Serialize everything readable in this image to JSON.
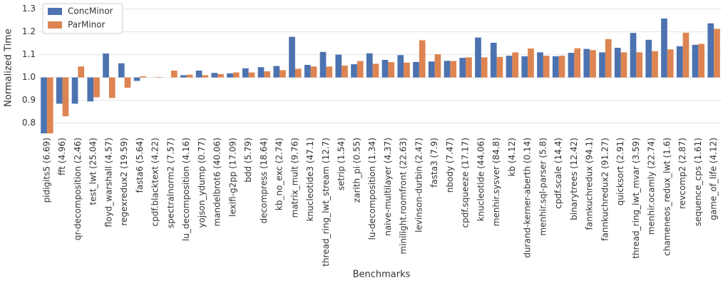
{
  "chart_data": {
    "type": "bar",
    "x_label": "Benchmarks",
    "y_label": "Normalized Time",
    "categories": [
      "pidigits5 (6.69)",
      "fft (4.96)",
      "qr-decomposition (2.46)",
      "test_lwt (25.04)",
      "floyd_warshall (4.57)",
      "regexredux2 (19.59)",
      "fasta6 (5.64)",
      "cpdf.blacktext (4.22)",
      "spectralnorm2 (7.57)",
      "lu_decomposition (4.16)",
      "yojson_ydump (0.77)",
      "mandelbrot6 (40.06)",
      "lexifi-g2pp (17.09)",
      "bdd (5.79)",
      "decompress (18.64)",
      "kb_no_exc (2.74)",
      "matrix_mult (9.76)",
      "knucleotide3 (47.1)",
      "thread_ring_lwt_stream (12.7)",
      "setrip (1.54)",
      "zarith_pi (0.55)",
      "lu-decomposition (1.34)",
      "naive-multilayer (4.37)",
      "minilight.roomfront (22.63)",
      "levinson-durbin (2.47)",
      "fasta3 (7.9)",
      "nbody (7.47)",
      "cpdf.squeeze (17.17)",
      "knucleotide (44.06)",
      "menhir.sysver (84.8)",
      "kb (4.12)",
      "durand-kerner-aberth (0.14)",
      "menhir.sql-parser (5.8)",
      "cpdf.scale (14.4)",
      "binarytrees (12.42)",
      "fannkuchredux (94.1)",
      "fannkuchredux2 (91.27)",
      "quicksort (2.91)",
      "thread_ring_lwt_mvar (3.59)",
      "menhir.ocamly (22.74)",
      "chameneos_redux_lwt (1.6)",
      "revcomp2 (2.87)",
      "sequence_cps (1.61)",
      "game_of_life (4.12)"
    ],
    "series": [
      {
        "name": "ConcMinor",
        "color": "#4c72b0",
        "values": [
          0.74,
          0.885,
          0.885,
          0.895,
          1.105,
          1.062,
          0.985,
          1.0,
          1.0,
          1.01,
          1.03,
          1.02,
          1.018,
          1.04,
          1.045,
          1.05,
          1.178,
          1.055,
          1.112,
          1.1,
          1.058,
          1.106,
          1.077,
          1.098,
          1.068,
          1.07,
          1.073,
          1.086,
          1.175,
          1.152,
          1.095,
          1.093,
          1.11,
          1.093,
          1.108,
          1.125,
          1.11,
          1.13,
          1.195,
          1.165,
          1.258,
          1.137,
          1.143,
          1.237
        ]
      },
      {
        "name": "ParMinor",
        "color": "#dd8452",
        "values": [
          0.74,
          0.83,
          1.048,
          0.913,
          0.91,
          0.955,
          1.005,
          1.002,
          1.03,
          1.012,
          1.01,
          1.015,
          1.022,
          1.022,
          1.027,
          1.032,
          1.038,
          1.048,
          1.048,
          1.052,
          1.072,
          1.06,
          1.067,
          1.065,
          1.163,
          1.102,
          1.072,
          1.088,
          1.088,
          1.09,
          1.11,
          1.127,
          1.095,
          1.095,
          1.128,
          1.12,
          1.168,
          1.11,
          1.11,
          1.115,
          1.123,
          1.196,
          1.147,
          1.213
        ]
      }
    ],
    "baseline": 1,
    "ylim": [
      0.755,
      1.33
    ],
    "yticks": [
      0.8,
      0.9,
      {
        "value": 1,
        "label": "1.0"
      },
      1.1,
      1.2,
      1.3
    ],
    "grid": true,
    "legend": "upper left"
  }
}
